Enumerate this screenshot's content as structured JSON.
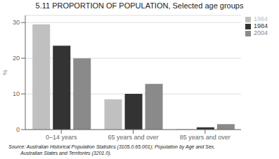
{
  "chart_data": {
    "type": "bar",
    "title": "5.11  PROPORTION OF POPULATION, Selected age groups",
    "ylabel": "%",
    "categories": [
      "0–14 years",
      "65 years and over",
      "85 years and over"
    ],
    "series": [
      {
        "name": "1964",
        "color": "#c0c0c0",
        "values": [
          29.5,
          8.5,
          0.2
        ]
      },
      {
        "name": "1984",
        "color": "#333333",
        "values": [
          23.5,
          10.0,
          0.65
        ]
      },
      {
        "name": "2004",
        "color": "#8a8a8a",
        "values": [
          20.0,
          12.8,
          1.5
        ]
      }
    ],
    "ylim": [
      0,
      32
    ],
    "yticks": [
      0,
      10,
      20,
      30
    ],
    "grid": true,
    "legend": "upper right",
    "annotations": [
      "Source: Australian Historical Population Statistics (3105.0.65.001); Population by Age and Sex,",
      "         Australian States and Territories (3201.0)."
    ]
  }
}
